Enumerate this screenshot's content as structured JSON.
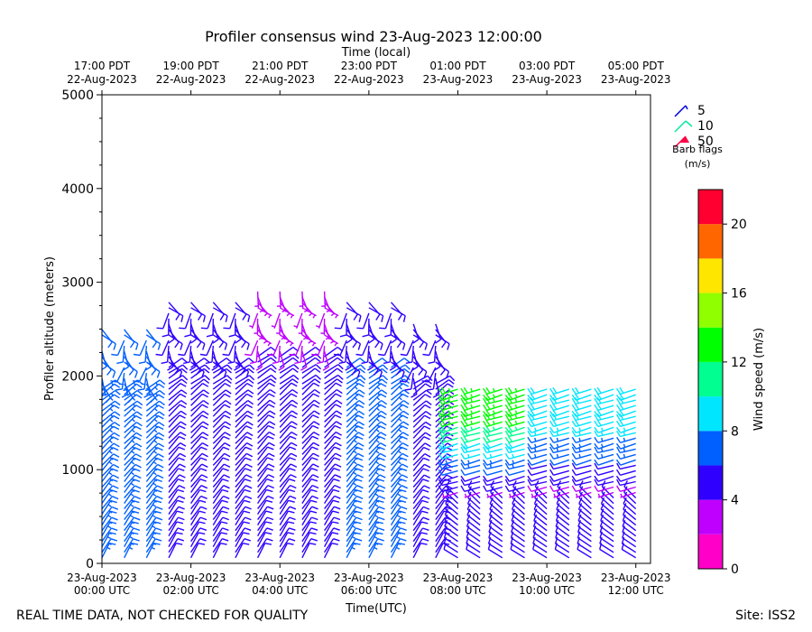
{
  "chart_data": {
    "type": "wind-barb-profile",
    "title": "Profiler consensus wind 23-Aug-2023 12:00:00",
    "xlabel_bottom": "Time(UTC)",
    "xlabel_top": "Time (local)",
    "ylabel": "Profiler altitude (meters)",
    "ylim": [
      0,
      5000
    ],
    "y_ticks": [
      "0",
      "1000",
      "2000",
      "3000",
      "4000",
      "5000"
    ],
    "xlim_hours": [
      0,
      12.33
    ],
    "bottom_ticks": [
      {
        "hour": 0,
        "date": "23-Aug-2023",
        "time": "00:00 UTC"
      },
      {
        "hour": 2,
        "date": "23-Aug-2023",
        "time": "02:00 UTC"
      },
      {
        "hour": 4,
        "date": "23-Aug-2023",
        "time": "04:00 UTC"
      },
      {
        "hour": 6,
        "date": "23-Aug-2023",
        "time": "06:00 UTC"
      },
      {
        "hour": 8,
        "date": "23-Aug-2023",
        "time": "08:00 UTC"
      },
      {
        "hour": 10,
        "date": "23-Aug-2023",
        "time": "10:00 UTC"
      },
      {
        "hour": 12,
        "date": "23-Aug-2023",
        "time": "12:00 UTC"
      }
    ],
    "top_ticks": [
      {
        "hour": 0,
        "time": "17:00 PDT",
        "date": "22-Aug-2023"
      },
      {
        "hour": 2,
        "time": "19:00 PDT",
        "date": "22-Aug-2023"
      },
      {
        "hour": 4,
        "time": "21:00 PDT",
        "date": "22-Aug-2023"
      },
      {
        "hour": 6,
        "time": "23:00 PDT",
        "date": "22-Aug-2023"
      },
      {
        "hour": 8,
        "time": "01:00 PDT",
        "date": "23-Aug-2023"
      },
      {
        "hour": 10,
        "time": "03:00 PDT",
        "date": "23-Aug-2023"
      },
      {
        "hour": 12,
        "time": "05:00 PDT",
        "date": "23-Aug-2023"
      }
    ],
    "profile_interval_hours": 0.5,
    "barb_flags": {
      "title_line1": "Barb flags",
      "title_line2": "(m/s)",
      "entries": [
        {
          "label": "5",
          "color": "#0000e0"
        },
        {
          "label": "10",
          "color": "#00e8a0"
        },
        {
          "label": "50",
          "color": "#ff0044"
        }
      ]
    },
    "colorbar": {
      "label": "Wind speed (m/s)",
      "min": 0,
      "max": 22,
      "bin_width": 2,
      "ticks": [
        "0",
        "4",
        "8",
        "12",
        "16",
        "20"
      ],
      "colors": [
        "#ff00c8",
        "#c000ff",
        "#3000ff",
        "#0060ff",
        "#00e6ff",
        "#00ff90",
        "#00ff00",
        "#90ff00",
        "#ffe600",
        "#ff6600",
        "#ff0030"
      ]
    },
    "profiles_summary": [
      {
        "hour_range": [
          0,
          1.0
        ],
        "max_alt": 2500,
        "upper_speed": 6,
        "lower_speed": 7
      },
      {
        "hour_range": [
          1.5,
          3.0
        ],
        "max_alt": 2800,
        "upper_speed": 4,
        "lower_speed": 6
      },
      {
        "hour_range": [
          3.5,
          5.0
        ],
        "max_alt": 2950,
        "upper_speed": 3,
        "lower_speed": 6
      },
      {
        "hour_range": [
          5.5,
          6.5
        ],
        "max_alt": 2800,
        "upper_speed": 5,
        "lower_speed": 8
      },
      {
        "hour_range": [
          7.0,
          7.5
        ],
        "max_alt": 2600,
        "upper_speed": 4,
        "lower_speed": 6
      },
      {
        "hour_range": [
          8.0,
          9.5
        ],
        "max_alt": 1900,
        "upper_speed": 12,
        "lower_speed": 3
      },
      {
        "hour_range": [
          10.0,
          12.0
        ],
        "max_alt": 1900,
        "upper_speed": 9,
        "lower_speed": 3
      }
    ]
  },
  "footer": {
    "quality_note": "REAL TIME DATA, NOT CHECKED FOR QUALITY",
    "site": "Site: ISS2"
  }
}
